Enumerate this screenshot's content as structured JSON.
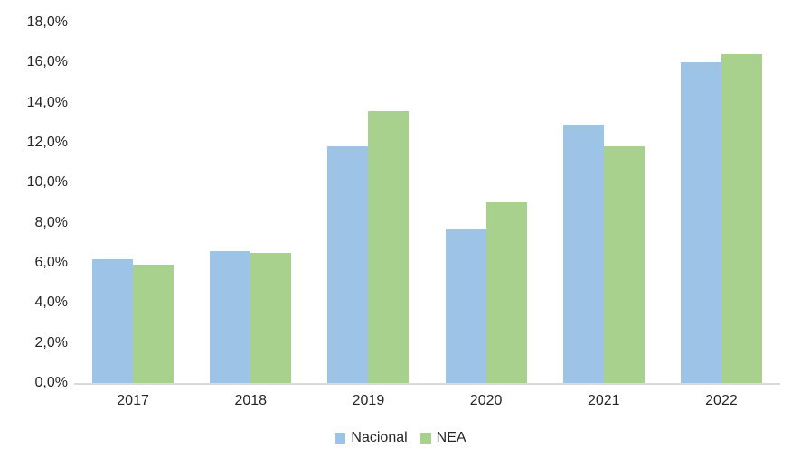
{
  "chart_data": {
    "type": "bar",
    "title": "",
    "xlabel": "",
    "ylabel": "",
    "categories": [
      "2017",
      "2018",
      "2019",
      "2020",
      "2021",
      "2022"
    ],
    "series": [
      {
        "name": "Nacional",
        "color": "#9DC3E6",
        "values": [
          6.2,
          6.6,
          11.8,
          7.7,
          12.9,
          16.0
        ]
      },
      {
        "name": "NEA",
        "color": "#A9D18E",
        "values": [
          5.9,
          6.5,
          13.6,
          9.0,
          11.8,
          16.4
        ]
      }
    ],
    "ylim": [
      0,
      18
    ],
    "ytick_step": 2,
    "ytick_labels": [
      "0,0%",
      "2,0%",
      "4,0%",
      "6,0%",
      "8,0%",
      "10,0%",
      "12,0%",
      "14,0%",
      "16,0%",
      "18,0%"
    ],
    "grid": false,
    "legend_position": "bottom",
    "colors": {
      "axis_line": "#d9d9d9",
      "text": "#262626",
      "background": "#ffffff"
    }
  }
}
